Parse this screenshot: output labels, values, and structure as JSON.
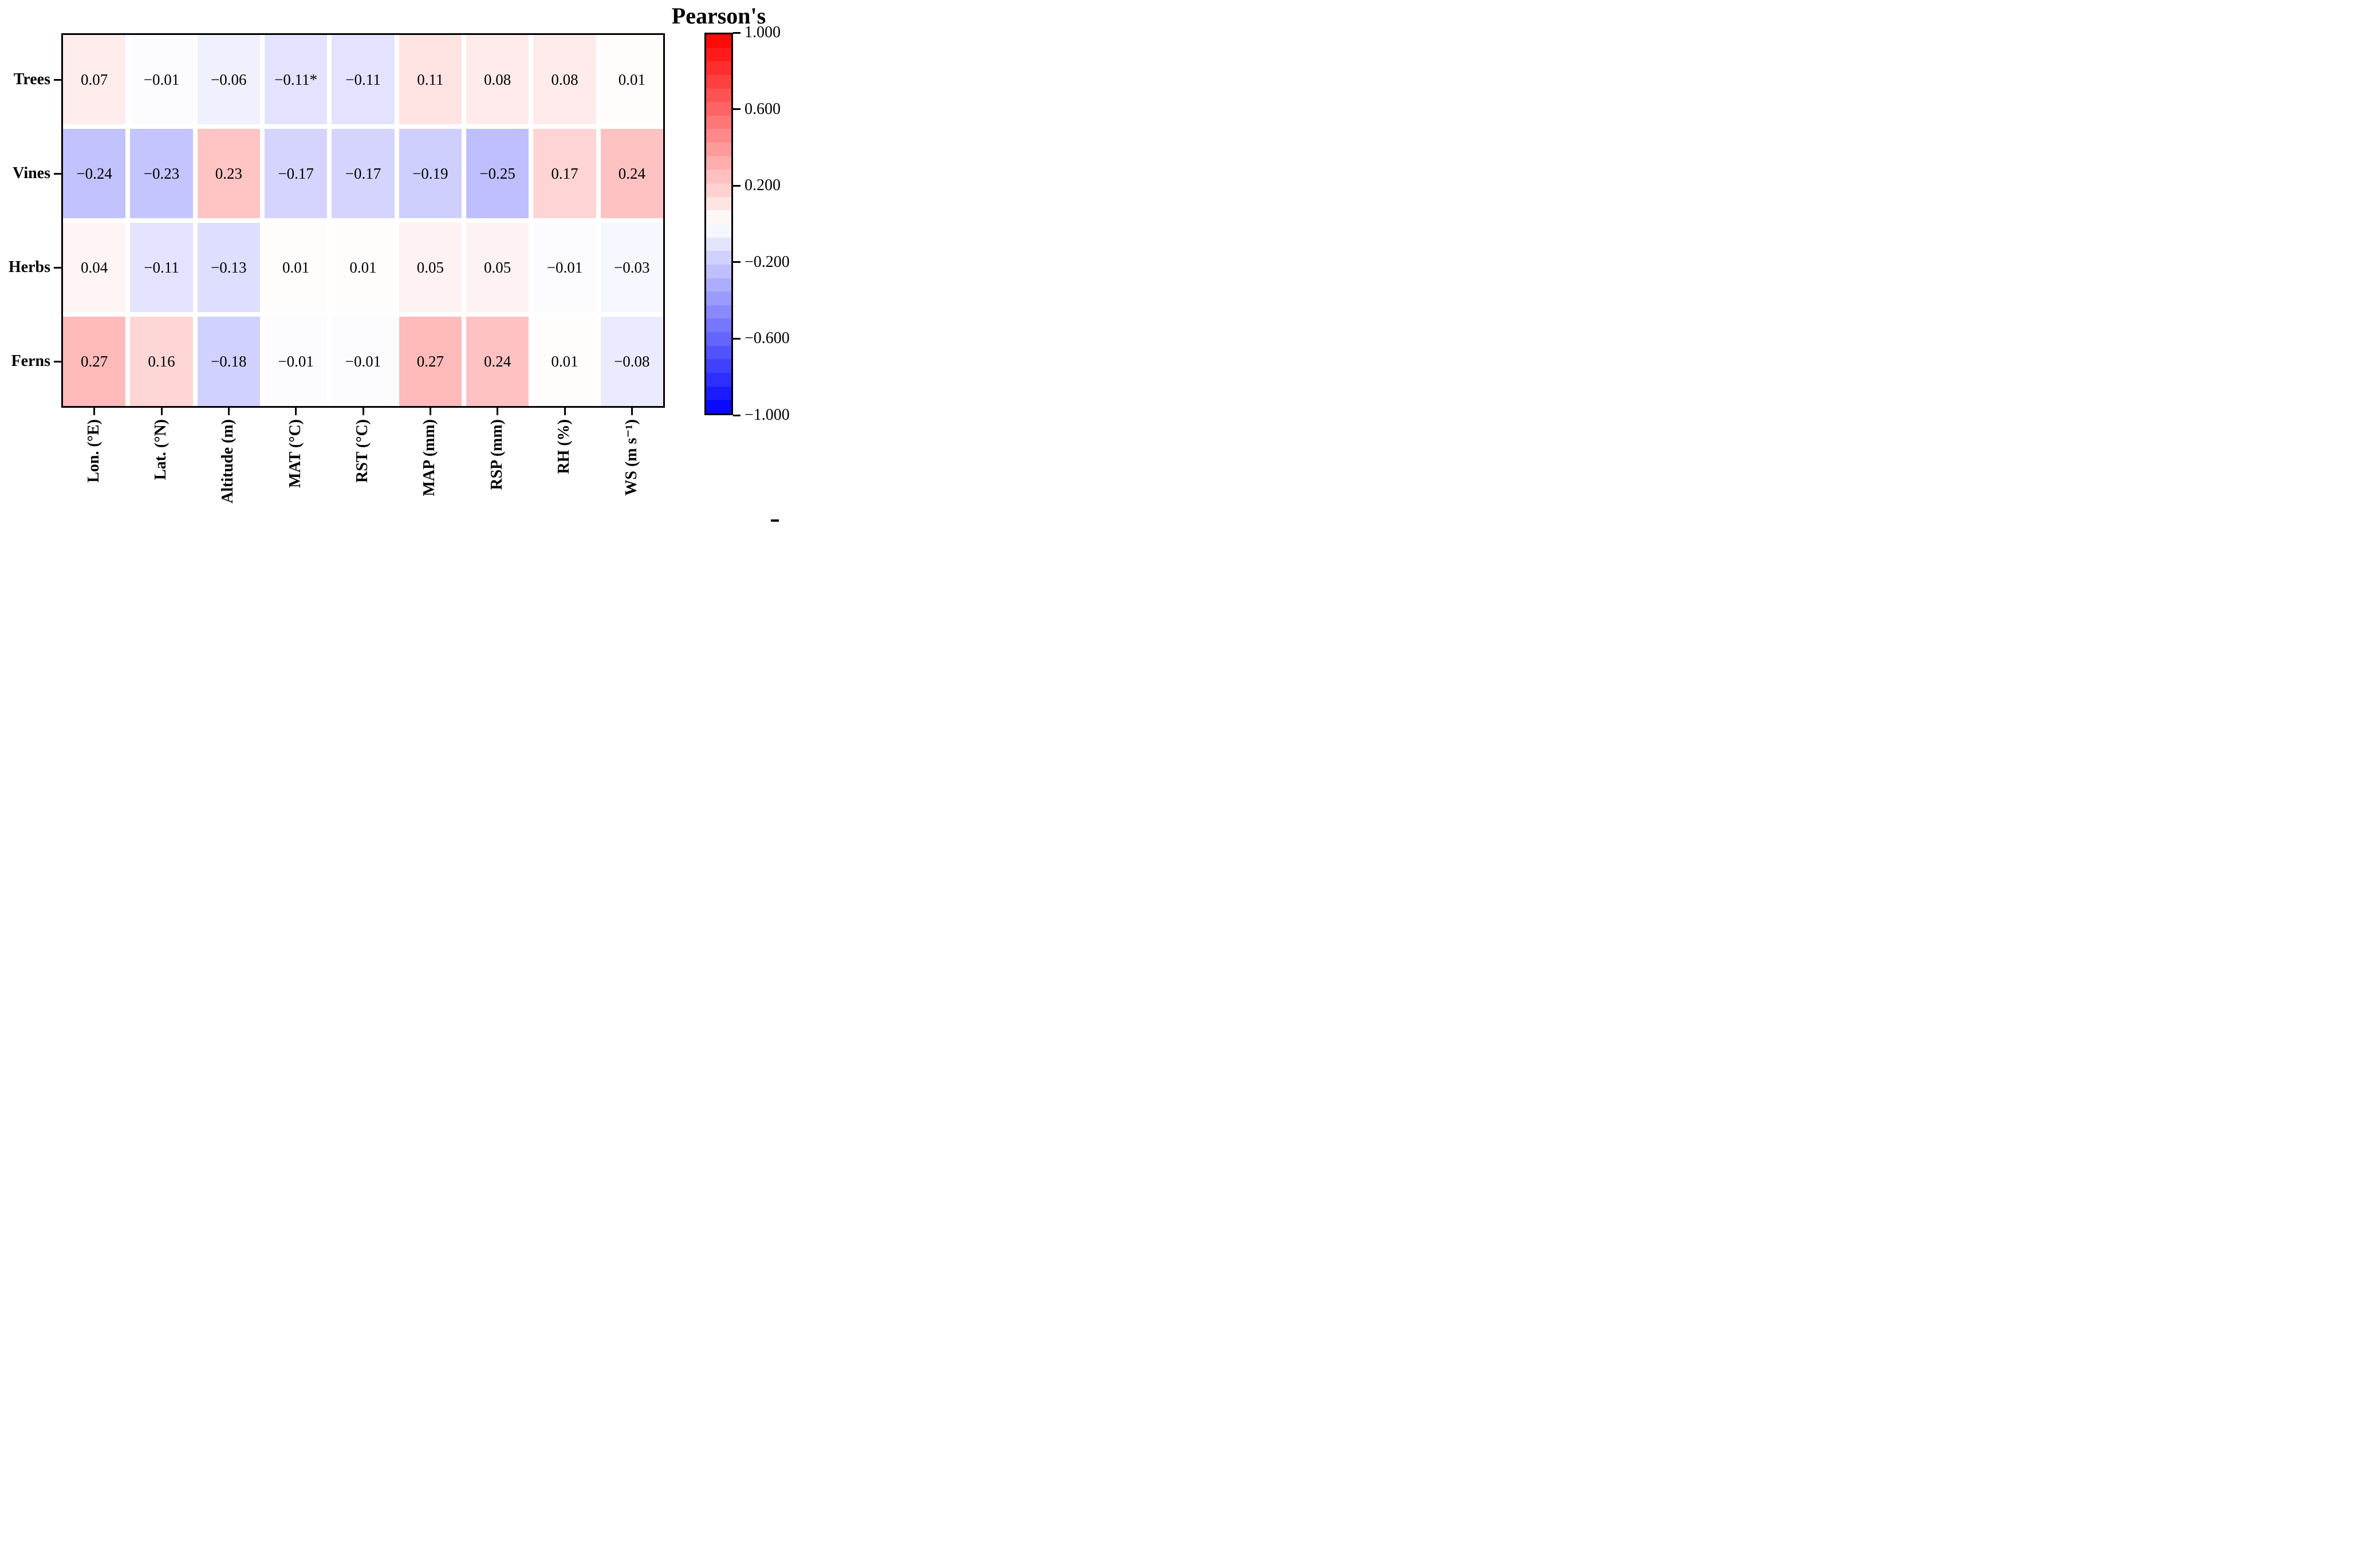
{
  "chart_data": {
    "type": "heatmap",
    "title": "Pearson's",
    "rows": [
      "Trees",
      "Vines",
      "Herbs",
      "Ferns"
    ],
    "columns": [
      "Lon. (°E)",
      "Lat. (°N)",
      "Altitude (m)",
      "MAT (°C)",
      "RST (°C)",
      "MAP (mm)",
      "RSP (mm)",
      "RH (%)",
      "WS (m s⁻¹)"
    ],
    "values": [
      [
        0.07,
        -0.01,
        -0.06,
        -0.11,
        -0.11,
        0.11,
        0.08,
        0.08,
        0.01
      ],
      [
        -0.24,
        -0.23,
        0.23,
        -0.17,
        -0.17,
        -0.19,
        -0.25,
        0.17,
        0.24
      ],
      [
        0.04,
        -0.11,
        -0.13,
        0.01,
        0.01,
        0.05,
        0.05,
        -0.01,
        -0.03
      ],
      [
        0.27,
        0.16,
        -0.18,
        -0.01,
        -0.01,
        0.27,
        0.24,
        0.01,
        -0.08
      ]
    ],
    "cell_labels": [
      [
        "0.07",
        "−0.01",
        "−0.06",
        "−0.11*",
        "−0.11",
        "0.11",
        "0.08",
        "0.08",
        "0.01"
      ],
      [
        "−0.24",
        "−0.23",
        "0.23",
        "−0.17",
        "−0.17",
        "−0.19",
        "−0.25",
        "0.17",
        "0.24"
      ],
      [
        "0.04",
        "−0.11",
        "−0.13",
        "0.01",
        "0.01",
        "0.05",
        "0.05",
        "−0.01",
        "−0.03"
      ],
      [
        "0.27",
        "0.16",
        "−0.18",
        "−0.01",
        "−0.01",
        "0.27",
        "0.24",
        "0.01",
        "−0.08"
      ]
    ],
    "colorbar": {
      "title": "Pearson's",
      "tick_labels": [
        "1.000",
        "0.600",
        "0.200",
        "−0.200",
        "−0.600",
        "−1.000"
      ],
      "tick_values": [
        1.0,
        0.6,
        0.2,
        -0.2,
        -0.6,
        -1.0
      ],
      "vmin": -1.0,
      "vmax": 1.0,
      "bar_steps": 28,
      "position": "right"
    },
    "colormap": {
      "style": "diverging blue-white-red",
      "negative": "#0000ff",
      "mid": "#ffffff",
      "positive": "#ff0000"
    },
    "layout": {
      "grid": "white gaps between cells",
      "x_tick_label_rotation": 90,
      "ylim": null,
      "legend_position": "right"
    }
  }
}
